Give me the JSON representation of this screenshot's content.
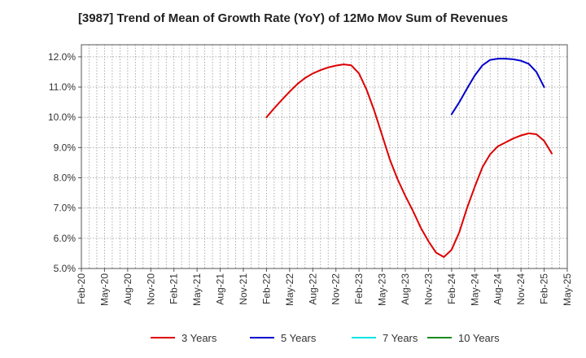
{
  "chart_data": {
    "type": "line",
    "title": "[3987]  Trend of Mean of Growth Rate (YoY) of 12Mo Mov Sum of Revenues",
    "xlabel": "",
    "ylabel": "",
    "ylim": [
      5.0,
      12.4
    ],
    "y_ticks": [
      5.0,
      6.0,
      7.0,
      8.0,
      9.0,
      10.0,
      11.0,
      12.0
    ],
    "y_tick_labels": [
      "5.0%",
      "6.0%",
      "7.0%",
      "8.0%",
      "9.0%",
      "10.0%",
      "11.0%",
      "12.0%"
    ],
    "x_tick_labels": [
      "Feb-20",
      "May-20",
      "Aug-20",
      "Nov-20",
      "Feb-21",
      "May-21",
      "Aug-21",
      "Nov-21",
      "Feb-22",
      "May-22",
      "Aug-22",
      "Nov-22",
      "Feb-23",
      "May-23",
      "Aug-23",
      "Nov-23",
      "Feb-24",
      "May-24",
      "Aug-24",
      "Nov-24",
      "Feb-25",
      "May-25"
    ],
    "x_range_months": [
      0,
      63
    ],
    "grid": true,
    "legend_position": "bottom",
    "series": [
      {
        "name": "3 Years",
        "color": "#dd0000",
        "start_month": 24,
        "values": [
          10.0,
          10.3,
          10.58,
          10.85,
          11.1,
          11.3,
          11.45,
          11.56,
          11.65,
          11.71,
          11.75,
          11.72,
          11.45,
          10.9,
          10.2,
          9.4,
          8.6,
          7.95,
          7.4,
          6.9,
          6.35,
          5.9,
          5.52,
          5.38,
          5.62,
          6.2,
          7.0,
          7.7,
          8.35,
          8.78,
          9.04,
          9.17,
          9.3,
          9.4,
          9.47,
          9.44,
          9.22,
          8.8
        ]
      },
      {
        "name": "5 Years",
        "color": "#0000cc",
        "start_month": 48,
        "values": [
          10.1,
          10.5,
          10.95,
          11.38,
          11.72,
          11.9,
          11.94,
          11.94,
          11.92,
          11.87,
          11.77,
          11.5,
          11.0
        ]
      },
      {
        "name": "7 Years",
        "color": "#00e5e5",
        "start_month": null,
        "values": []
      },
      {
        "name": "10 Years",
        "color": "#1a8a1a",
        "start_month": null,
        "values": []
      }
    ]
  }
}
